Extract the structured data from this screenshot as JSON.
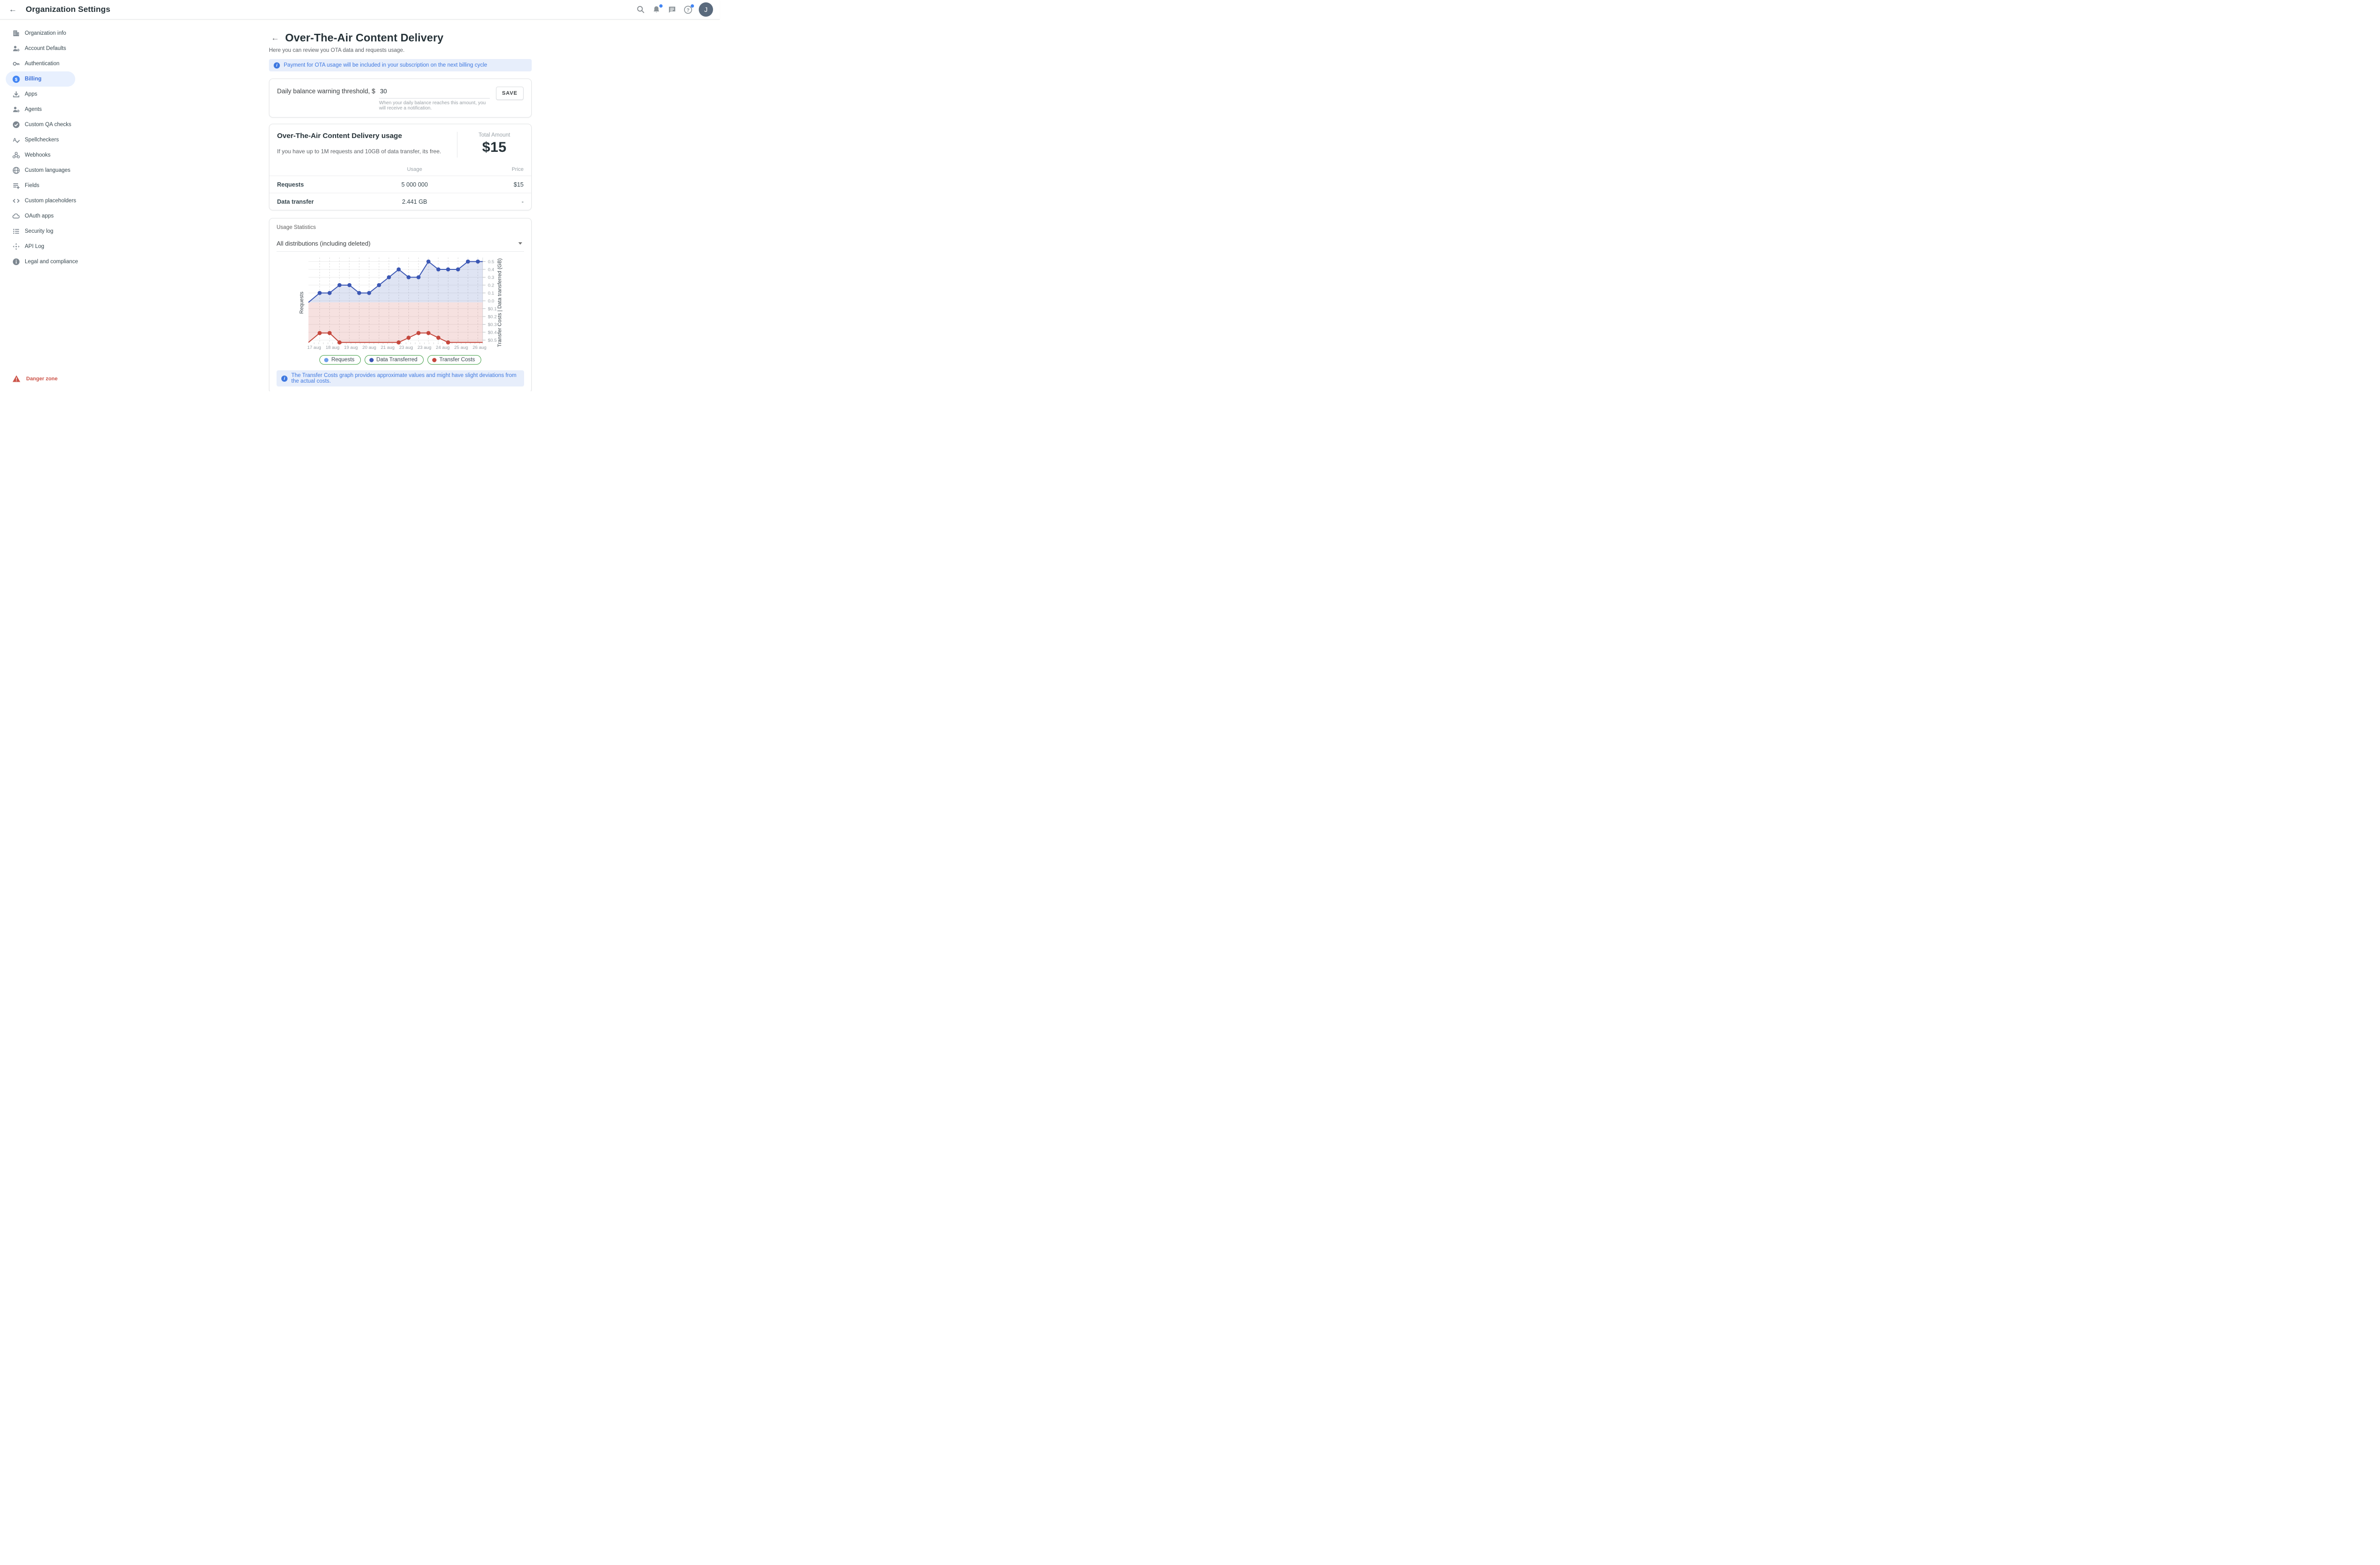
{
  "topbar": {
    "title": "Organization Settings",
    "avatar_letter": "J"
  },
  "sidebar": {
    "items": [
      {
        "label": "Organization info",
        "icon": "building",
        "active": false
      },
      {
        "label": "Account Defaults",
        "icon": "person-gear",
        "active": false
      },
      {
        "label": "Authentication",
        "icon": "key",
        "active": false
      },
      {
        "label": "Billing",
        "icon": "dollar-circle",
        "active": true
      },
      {
        "label": "Apps",
        "icon": "download",
        "active": false
      },
      {
        "label": "Agents",
        "icon": "person-gear",
        "active": false
      },
      {
        "label": "Custom QA checks",
        "icon": "check-circle",
        "active": false
      },
      {
        "label": "Spellcheckers",
        "icon": "spellcheck",
        "active": false
      },
      {
        "label": "Webhooks",
        "icon": "webhook",
        "active": false
      },
      {
        "label": "Custom languages",
        "icon": "globe",
        "active": false
      },
      {
        "label": "Fields",
        "icon": "playlist-add",
        "active": false
      },
      {
        "label": "Custom placeholders",
        "icon": "code",
        "active": false
      },
      {
        "label": "OAuth apps",
        "icon": "cloud",
        "active": false
      },
      {
        "label": "Security log",
        "icon": "list",
        "active": false
      },
      {
        "label": "API Log",
        "icon": "api-arrows",
        "active": false
      },
      {
        "label": "Legal and compliance",
        "icon": "info-circle",
        "active": false
      }
    ],
    "danger_label": "Danger zone"
  },
  "page": {
    "title": "Over-The-Air Content Delivery",
    "subtitle": "Here you can review you OTA data and requests usage.",
    "banner": "Payment for OTA usage will be included in your subscription on the next billing cycle"
  },
  "threshold": {
    "label": "Daily balance warning threshold, $",
    "value": "30",
    "helper": "When your daily balance reaches this amount, you will receive a notification.",
    "save_label": "SAVE"
  },
  "usage": {
    "title": "Over-The-Air Content Delivery usage",
    "free_note": "If you have up to 1M requests and 10GB of data transfer, its free.",
    "total_label": "Total Amount",
    "total_value": "$15",
    "table": {
      "headers": {
        "usage": "Usage",
        "price": "Price"
      },
      "rows": [
        {
          "name": "Requests",
          "usage": "5 000 000",
          "price": "$15"
        },
        {
          "name": "Data transfer",
          "usage": "2.441 GB",
          "price": "-"
        }
      ]
    }
  },
  "stats": {
    "label": "Usage Statistics",
    "filter_value": "All distributions (including deleted)",
    "note": "The Transfer Costs graph provides approximate values and might have slight deviations from the actual costs."
  },
  "colors": {
    "accent_blue": "#4285f4",
    "banner_text": "#3e78e0",
    "banner_bg": "#e7eefb",
    "active_item_bg": "#e8f0fe",
    "legend_border": "#43a047",
    "danger_red": "#cc5449",
    "series_requests": "#6d9eeb",
    "series_data_transferred": "#3b57b4",
    "series_transfer_costs": "#c5473c",
    "blue_fill": "rgba(59,87,180,0.16)",
    "red_fill": "rgba(197,71,60,0.16)"
  },
  "chart_data": {
    "type": "area",
    "title": "",
    "x_tick_labels": [
      "17 aug",
      "18 aug",
      "19 aug",
      "20 aug",
      "21 aug",
      "23 aug",
      "23 aug",
      "24 aug",
      "25 aug",
      "26 aug"
    ],
    "left_axis_label": "Requests",
    "right_axis_label": "Transfer Costs | Data transferred (GB)",
    "right_axis_ticks": [
      "0.5",
      "0.4",
      "0.3",
      "0.2",
      "0.1",
      "0.0",
      "$0.1",
      "$0.2",
      "$0.3",
      "$0.4",
      "$0.5"
    ],
    "right_axis_tick_values": [
      0.5,
      0.4,
      0.3,
      0.2,
      0.1,
      0.0,
      -0.1,
      -0.2,
      -0.3,
      -0.4,
      -0.5
    ],
    "ylim_gb": [
      0,
      0.55
    ],
    "ylim_cost_inverted": [
      0,
      0.55
    ],
    "grid": true,
    "legend_position": "bottom",
    "series": [
      {
        "name": "Data Transferred",
        "unit": "GB",
        "axis": "gb",
        "color": "#3b57b4",
        "fill": "rgba(59,87,180,0.16)",
        "points": [
          [
            -0.31,
            -0.02,
            0
          ],
          [
            0.3,
            0.1,
            1
          ],
          [
            0.84,
            0.1,
            1
          ],
          [
            1.38,
            0.2,
            1
          ],
          [
            1.92,
            0.2,
            1
          ],
          [
            2.45,
            0.1,
            1
          ],
          [
            2.99,
            0.1,
            1
          ],
          [
            3.53,
            0.2,
            1
          ],
          [
            4.07,
            0.3,
            1
          ],
          [
            4.6,
            0.4,
            1
          ],
          [
            5.14,
            0.3,
            1
          ],
          [
            5.68,
            0.3,
            1
          ],
          [
            6.22,
            0.5,
            1
          ],
          [
            6.76,
            0.4,
            1
          ],
          [
            7.29,
            0.4,
            1
          ],
          [
            7.83,
            0.4,
            1
          ],
          [
            8.37,
            0.5,
            1
          ],
          [
            8.91,
            0.5,
            1
          ],
          [
            9.17,
            0.5,
            0
          ]
        ]
      },
      {
        "name": "Transfer Costs",
        "unit": "$",
        "axis": "usd",
        "color": "#c5473c",
        "fill": "rgba(197,71,60,0.16)",
        "points": [
          [
            -0.31,
            0.53,
            0
          ],
          [
            0.3,
            0.41,
            1
          ],
          [
            0.84,
            0.41,
            1
          ],
          [
            1.38,
            0.53,
            1
          ],
          [
            4.6,
            0.53,
            1
          ],
          [
            5.14,
            0.47,
            1
          ],
          [
            5.68,
            0.41,
            1
          ],
          [
            6.22,
            0.41,
            1
          ],
          [
            6.76,
            0.47,
            1
          ],
          [
            7.29,
            0.53,
            1
          ],
          [
            9.17,
            0.53,
            0
          ]
        ]
      }
    ],
    "legend": [
      {
        "label": "Requests",
        "color": "#6d9eeb"
      },
      {
        "label": "Data Transferred",
        "color": "#3b57b4"
      },
      {
        "label": "Transfer Costs",
        "color": "#c5473c"
      }
    ]
  }
}
